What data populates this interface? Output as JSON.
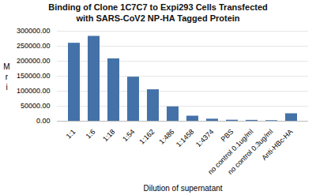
{
  "chart_data": {
    "type": "bar",
    "title": "Binding of Clone 1C7C7 to Expi293 Cells Transfected\nwith SARS-CoV2 NP-HA Tagged Protein",
    "xlabel": "Dilution of supernatant",
    "ylabel": "M\nr\ni",
    "categories": [
      "1:1",
      "1:6",
      "1:18",
      "1:54",
      "1:162",
      "1:486",
      "1:1458",
      "1:4374",
      "PBS",
      "no control 0.1ug/ml",
      "no control 0.3ug/ml",
      "Anti-HBc-HA"
    ],
    "values": [
      260000,
      283000,
      208000,
      147000,
      105000,
      48000,
      17000,
      7000,
      3500,
      3000,
      2000,
      25000
    ],
    "color": "#4472a8",
    "ylim": [
      0,
      300000
    ],
    "yticks": [
      {
        "value": 0,
        "label": "0.00"
      },
      {
        "value": 50000,
        "label": "50000.00"
      },
      {
        "value": 100000,
        "label": "100000.00"
      },
      {
        "value": 150000,
        "label": "150000.00"
      },
      {
        "value": 200000,
        "label": "200000.00"
      },
      {
        "value": 250000,
        "label": "250000.00"
      },
      {
        "value": 300000,
        "label": "300000.00"
      }
    ],
    "grid": true
  }
}
